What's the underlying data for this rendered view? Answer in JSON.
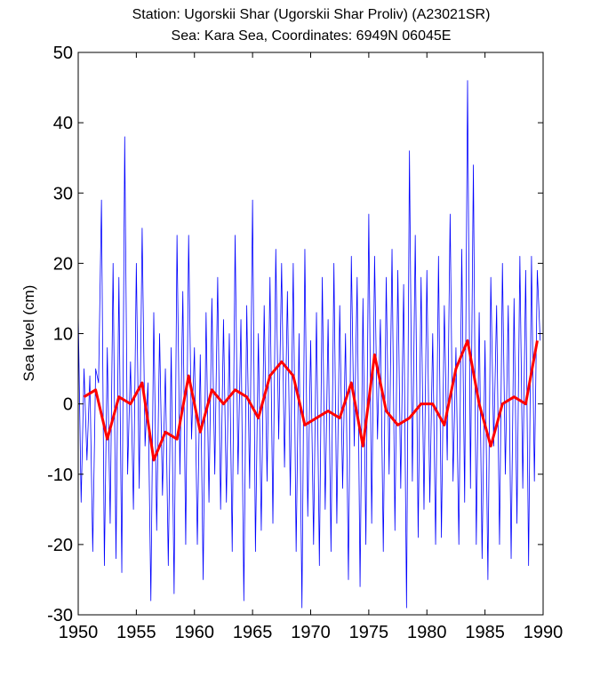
{
  "chart_data": {
    "type": "line",
    "title": "Station: Ugorskii Shar (Ugorskii Shar Proliv)  (A23021SR)",
    "subtitle": "Sea: Kara Sea, Coordinates: 6949N 06045E",
    "y_label": "Sea level (cm)",
    "xlim": [
      1950,
      1990
    ],
    "xticks": [
      1950,
      1955,
      1960,
      1965,
      1970,
      1975,
      1980,
      1985,
      1990
    ],
    "ylim": [
      -30,
      50
    ],
    "yticks": [
      -30,
      -20,
      -10,
      0,
      10,
      20,
      30,
      40,
      50
    ],
    "grid": false,
    "series": [
      {
        "color": "#0000ff",
        "width": 0.8,
        "x": [
          1950,
          1950.25,
          1950.5,
          1950.75,
          1951,
          1951.25,
          1951.5,
          1951.75,
          1952,
          1952.25,
          1952.5,
          1952.75,
          1953,
          1953.25,
          1953.5,
          1953.75,
          1954,
          1954.25,
          1954.5,
          1954.75,
          1955,
          1955.25,
          1955.5,
          1955.75,
          1956,
          1956.25,
          1956.5,
          1956.75,
          1957,
          1957.25,
          1957.5,
          1957.75,
          1958,
          1958.25,
          1958.5,
          1958.75,
          1959,
          1959.25,
          1959.5,
          1959.75,
          1960,
          1960.25,
          1960.5,
          1960.75,
          1961,
          1961.25,
          1961.5,
          1961.75,
          1962,
          1962.25,
          1962.5,
          1962.75,
          1963,
          1963.25,
          1963.5,
          1963.75,
          1964,
          1964.25,
          1964.5,
          1964.75,
          1965,
          1965.25,
          1965.5,
          1965.75,
          1966,
          1966.25,
          1966.5,
          1966.75,
          1967,
          1967.25,
          1967.5,
          1967.75,
          1968,
          1968.25,
          1968.5,
          1968.75,
          1969,
          1969.25,
          1969.5,
          1969.75,
          1970,
          1970.25,
          1970.5,
          1970.75,
          1971,
          1971.25,
          1971.5,
          1971.75,
          1972,
          1972.25,
          1972.5,
          1972.75,
          1973,
          1973.25,
          1973.5,
          1973.75,
          1974,
          1974.25,
          1974.5,
          1974.75,
          1975,
          1975.25,
          1975.5,
          1975.75,
          1976,
          1976.25,
          1976.5,
          1976.75,
          1977,
          1977.25,
          1977.5,
          1977.75,
          1978,
          1978.25,
          1978.5,
          1978.75,
          1979,
          1979.25,
          1979.5,
          1979.75,
          1980,
          1980.25,
          1980.5,
          1980.75,
          1981,
          1981.25,
          1981.5,
          1981.75,
          1982,
          1982.25,
          1982.5,
          1982.75,
          1983,
          1983.25,
          1983.5,
          1983.75,
          1984,
          1984.25,
          1984.5,
          1984.75,
          1985,
          1985.25,
          1985.5,
          1985.75,
          1986,
          1986.25,
          1986.5,
          1986.75,
          1987,
          1987.25,
          1987.5,
          1987.75,
          1988,
          1988.25,
          1988.5,
          1988.75,
          1989,
          1989.25,
          1989.5,
          1989.75
        ],
        "values": [
          13,
          -14,
          5,
          -8,
          4,
          -21,
          5,
          3,
          29,
          -23,
          8,
          -17,
          20,
          -22,
          18,
          -24,
          38,
          -10,
          6,
          -15,
          20,
          -12,
          25,
          -6,
          3,
          -28,
          13,
          -18,
          10,
          -13,
          5,
          -23,
          8,
          -27,
          24,
          -10,
          16,
          -20,
          24,
          -5,
          8,
          -20,
          7,
          -25,
          13,
          -14,
          15,
          -10,
          18,
          -15,
          12,
          -14,
          10,
          -21,
          24,
          -10,
          12,
          -28,
          14,
          -12,
          29,
          -21,
          10,
          -18,
          14,
          -11,
          18,
          -17,
          22,
          -5,
          20,
          -9,
          16,
          -13,
          20,
          -21,
          10,
          -29,
          22,
          -16,
          9,
          -20,
          13,
          -23,
          18,
          -15,
          12,
          -21,
          20,
          -17,
          14,
          -12,
          10,
          -25,
          21,
          -6,
          18,
          -26,
          15,
          -20,
          27,
          -17,
          21,
          -5,
          12,
          -21,
          18,
          -10,
          22,
          -18,
          19,
          -12,
          17,
          -29,
          36,
          -11,
          24,
          -19,
          18,
          -15,
          19,
          -14,
          10,
          -20,
          21,
          -19,
          14,
          -8,
          27,
          -11,
          8,
          -20,
          22,
          -14,
          46,
          -12,
          34,
          -20,
          13,
          -22,
          9,
          -25,
          18,
          -6,
          14,
          -20,
          20,
          -10,
          14,
          -22,
          15,
          -17,
          21,
          -12,
          19,
          -23,
          21,
          -11,
          19,
          9
        ]
      },
      {
        "color": "#ff0000",
        "width": 3,
        "x": [
          1950.5,
          1951.5,
          1952.5,
          1953.5,
          1954.5,
          1955.5,
          1956.5,
          1957.5,
          1958.5,
          1959.5,
          1960.5,
          1961.5,
          1962.5,
          1963.5,
          1964.5,
          1965.5,
          1966.5,
          1967.5,
          1968.5,
          1969.5,
          1970.5,
          1971.5,
          1972.5,
          1973.5,
          1974.5,
          1975.5,
          1976.5,
          1977.5,
          1978.5,
          1979.5,
          1980.5,
          1981.5,
          1982.5,
          1983.5,
          1984.5,
          1985.5,
          1986.5,
          1987.5,
          1988.5,
          1989.5
        ],
        "values": [
          1,
          2,
          -5,
          1,
          0,
          3,
          -8,
          -4,
          -5,
          4,
          -4,
          2,
          0,
          2,
          1,
          -2,
          4,
          6,
          4,
          -3,
          -2,
          -1,
          -2,
          3,
          -6,
          7,
          -1,
          -3,
          -2,
          0,
          0,
          -3,
          5,
          9,
          0,
          -6,
          0,
          1,
          0,
          9
        ]
      }
    ]
  }
}
